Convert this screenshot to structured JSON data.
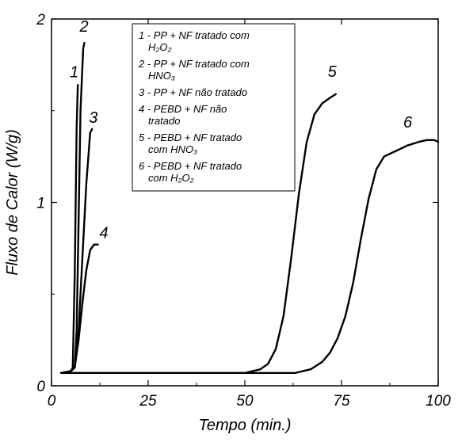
{
  "chart_data": {
    "type": "line",
    "title": "",
    "xlabel": "Tempo (min.)",
    "ylabel": "Fluxo de Calor (W/g)",
    "xlim": [
      0,
      100
    ],
    "ylim": [
      0,
      2
    ],
    "x_ticks": [
      0,
      25,
      50,
      75,
      100
    ],
    "x_tick_labels": [
      "0",
      "25",
      "50",
      "75",
      "100"
    ],
    "y_ticks": [
      0,
      1,
      2
    ],
    "y_tick_labels": [
      "0",
      "1",
      "2"
    ],
    "grid": false,
    "legend_position": "top-center",
    "legend": [
      {
        "id": "1",
        "lines": [
          "1 - PP + NF tratado com",
          "H₂O₂"
        ]
      },
      {
        "id": "2",
        "lines": [
          "2 - PP + NF tratado com",
          "HNO₃"
        ]
      },
      {
        "id": "3",
        "lines": [
          "3 - PP + NF não tratado"
        ]
      },
      {
        "id": "4",
        "lines": [
          "4 - PEBD + NF não",
          "tratado"
        ]
      },
      {
        "id": "5",
        "lines": [
          "5 - PEBD + NF tratado",
          "com HNO₃"
        ]
      },
      {
        "id": "6",
        "lines": [
          "6 - PEBD + NF tratado",
          "com H₂O₂"
        ]
      }
    ],
    "series": [
      {
        "label": "1",
        "x": [
          2.5,
          5,
          5.5,
          6,
          6.5,
          6.8
        ],
        "y": [
          0.07,
          0.08,
          0.1,
          0.6,
          1.4,
          1.64
        ]
      },
      {
        "label": "2",
        "x": [
          2.5,
          5,
          6,
          6.5,
          7,
          7.5,
          8.2,
          8.5
        ],
        "y": [
          0.07,
          0.08,
          0.1,
          0.3,
          0.9,
          1.5,
          1.84,
          1.87
        ]
      },
      {
        "label": "3",
        "x": [
          2.5,
          5,
          6,
          7,
          8,
          9,
          10,
          10.5
        ],
        "y": [
          0.07,
          0.08,
          0.1,
          0.3,
          0.7,
          1.1,
          1.38,
          1.4
        ]
      },
      {
        "label": "4",
        "x": [
          2.5,
          5,
          6,
          7,
          8,
          9,
          10,
          11,
          12
        ],
        "y": [
          0.07,
          0.08,
          0.1,
          0.25,
          0.45,
          0.63,
          0.74,
          0.77,
          0.77
        ]
      },
      {
        "label": "5",
        "x": [
          2.5,
          50,
          54,
          56,
          58,
          60,
          62,
          64,
          66,
          68,
          70,
          72,
          73.5
        ],
        "y": [
          0.07,
          0.07,
          0.09,
          0.12,
          0.2,
          0.38,
          0.7,
          1.05,
          1.33,
          1.48,
          1.54,
          1.57,
          1.59
        ]
      },
      {
        "label": "6",
        "x": [
          2.5,
          63,
          67,
          70,
          72,
          74,
          76,
          78,
          80,
          82,
          84,
          86,
          88,
          90,
          92,
          95,
          97,
          99,
          100
        ],
        "y": [
          0.07,
          0.07,
          0.09,
          0.13,
          0.18,
          0.26,
          0.38,
          0.56,
          0.8,
          1.02,
          1.18,
          1.25,
          1.27,
          1.29,
          1.31,
          1.33,
          1.34,
          1.34,
          1.33
        ]
      }
    ]
  }
}
